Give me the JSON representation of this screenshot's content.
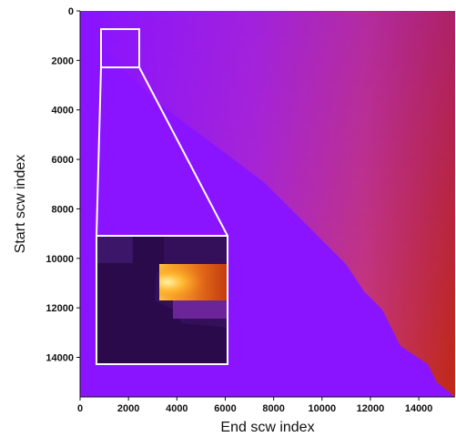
{
  "chart_data": {
    "type": "heatmap",
    "xlabel": "End scw index",
    "ylabel": "Start scw index",
    "x_ticks": [
      0,
      2000,
      4000,
      6000,
      8000,
      10000,
      12000,
      14000
    ],
    "y_ticks": [
      0,
      2000,
      4000,
      6000,
      8000,
      10000,
      12000,
      14000
    ],
    "xlim": [
      0,
      15500
    ],
    "ylim": [
      0,
      15600
    ],
    "y_inverted": true,
    "colormap": "gnuplot",
    "colors": {
      "low": "#8a14ff",
      "mid": "#d23a86",
      "high": "#c42a08",
      "inset_bg": "#35105a",
      "inset_band": "#e26a18",
      "inset_peak": "#ffe85a"
    },
    "inset": {
      "source_region": {
        "x": [
          1200,
          2400
        ],
        "y": [
          700,
          2300
        ]
      },
      "note_visible": false
    },
    "tick_labels_x": [
      "0",
      "2000",
      "4000",
      "6000",
      "8000",
      "10000",
      "12000",
      "14000"
    ],
    "tick_labels_y": [
      "0",
      "2000",
      "4000",
      "6000",
      "8000",
      "10000",
      "12000",
      "14000"
    ]
  }
}
